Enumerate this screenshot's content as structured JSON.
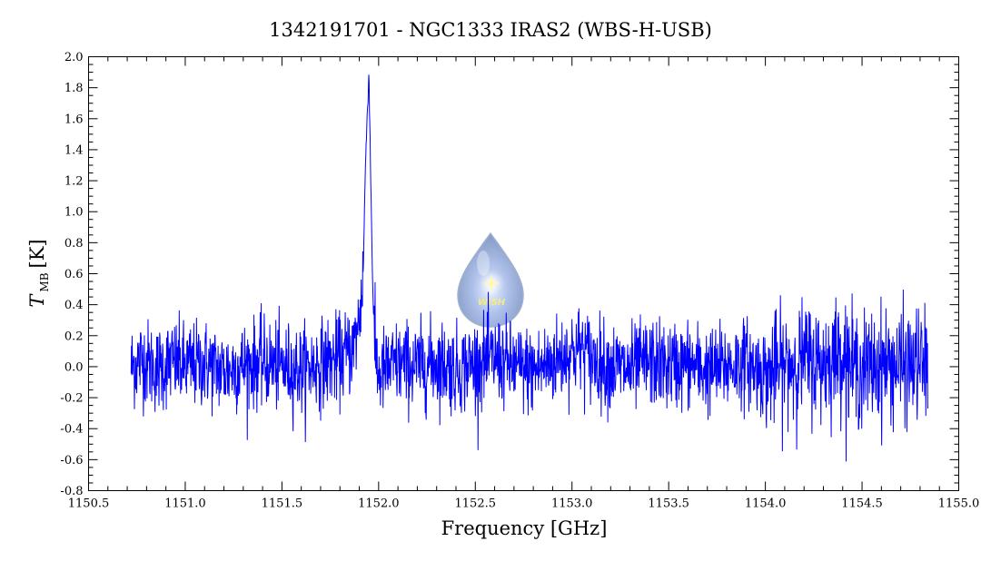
{
  "chart_data": {
    "type": "line",
    "title": "1342191701 - NGC1333 IRAS2 (WBS-H-USB)",
    "xlabel": "Frequency [GHz]",
    "ylabel_main": "T",
    "ylabel_sub": "MB",
    "ylabel_unit": "[K]",
    "xlim": [
      1150.5,
      1155.0
    ],
    "ylim": [
      -0.8,
      2.0
    ],
    "x_ticks": [
      "1150.5",
      "1151.0",
      "1151.5",
      "1152.0",
      "1152.5",
      "1153.0",
      "1153.5",
      "1154.0",
      "1154.5",
      "1155.0"
    ],
    "y_ticks": [
      "-0.8",
      "-0.6",
      "-0.4",
      "-0.2",
      "0.0",
      "0.2",
      "0.4",
      "0.6",
      "0.8",
      "1.0",
      "1.2",
      "1.4",
      "1.6",
      "1.8",
      "2.0"
    ],
    "grid": false,
    "legend": "none",
    "series_color": "#0000ff",
    "series": [
      {
        "x": [
          1150.72,
          1150.78,
          1150.85,
          1150.93,
          1151.0,
          1151.1,
          1151.2,
          1151.3,
          1151.4,
          1151.5,
          1151.6,
          1151.7,
          1151.8,
          1151.87,
          1151.9,
          1151.92,
          1151.93,
          1151.94,
          1151.95,
          1151.96,
          1151.97,
          1151.98,
          1152.0,
          1152.1,
          1152.2,
          1152.3,
          1152.4,
          1152.5,
          1152.6,
          1152.7,
          1152.8,
          1152.9,
          1153.0,
          1153.05,
          1153.1,
          1153.2,
          1153.3,
          1153.4,
          1153.5,
          1153.6,
          1153.7,
          1153.8,
          1153.9,
          1154.0,
          1154.1,
          1154.2,
          1154.3,
          1154.4,
          1154.45,
          1154.5,
          1154.6,
          1154.7,
          1154.8,
          1154.84
        ],
        "y": [
          0.0,
          0.05,
          -0.02,
          0.03,
          0.0,
          0.02,
          -0.03,
          0.01,
          0.03,
          0.0,
          -0.02,
          0.02,
          0.05,
          0.12,
          0.3,
          0.6,
          1.2,
          1.6,
          1.9,
          1.15,
          0.5,
          0.1,
          -0.05,
          0.02,
          0.0,
          0.03,
          -0.02,
          0.02,
          0.05,
          0.0,
          -0.03,
          0.03,
          0.1,
          0.12,
          0.05,
          0.0,
          -0.02,
          0.03,
          0.0,
          0.02,
          -0.03,
          0.0,
          0.03,
          -0.05,
          0.0,
          0.05,
          0.02,
          0.1,
          0.0,
          -0.02,
          0.02,
          0.0,
          0.02,
          0.0
        ]
      }
    ]
  },
  "logo": {
    "text": "WISH"
  }
}
